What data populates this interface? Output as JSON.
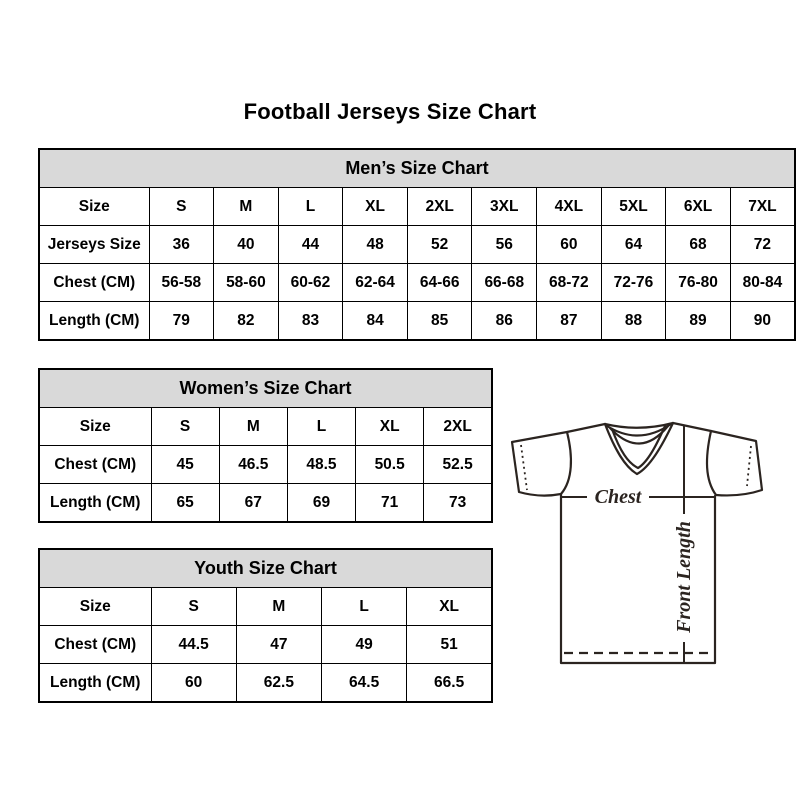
{
  "page_title": "Football Jerseys Size Chart",
  "tables": [
    {
      "title": "Men’s Size Chart",
      "rows": [
        [
          "Size",
          "S",
          "M",
          "L",
          "XL",
          "2XL",
          "3XL",
          "4XL",
          "5XL",
          "6XL",
          "7XL"
        ],
        [
          "Jerseys Size",
          "36",
          "40",
          "44",
          "48",
          "52",
          "56",
          "60",
          "64",
          "68",
          "72"
        ],
        [
          "Chest (CM)",
          "56-58",
          "58-60",
          "60-62",
          "62-64",
          "64-66",
          "66-68",
          "68-72",
          "72-76",
          "76-80",
          "80-84"
        ],
        [
          "Length (CM)",
          "79",
          "82",
          "83",
          "84",
          "85",
          "86",
          "87",
          "88",
          "89",
          "90"
        ]
      ]
    },
    {
      "title": "Women’s Size Chart",
      "rows": [
        [
          "Size",
          "S",
          "M",
          "L",
          "XL",
          "2XL"
        ],
        [
          "Chest (CM)",
          "45",
          "46.5",
          "48.5",
          "50.5",
          "52.5"
        ],
        [
          "Length (CM)",
          "65",
          "67",
          "69",
          "71",
          "73"
        ]
      ]
    },
    {
      "title": "Youth Size Chart",
      "rows": [
        [
          "Size",
          "S",
          "M",
          "L",
          "XL"
        ],
        [
          "Chest (CM)",
          "44.5",
          "47",
          "49",
          "51"
        ],
        [
          "Length (CM)",
          "60",
          "62.5",
          "64.5",
          "66.5"
        ]
      ]
    }
  ],
  "diagram": {
    "chest_label": "Chest",
    "front_length_label": "Front Length"
  },
  "colors": {
    "header_bg": "#d9d9d9",
    "table_border": "#000000",
    "text": "#000000",
    "diagram_stroke": "#2b2420",
    "background": "#ffffff"
  }
}
